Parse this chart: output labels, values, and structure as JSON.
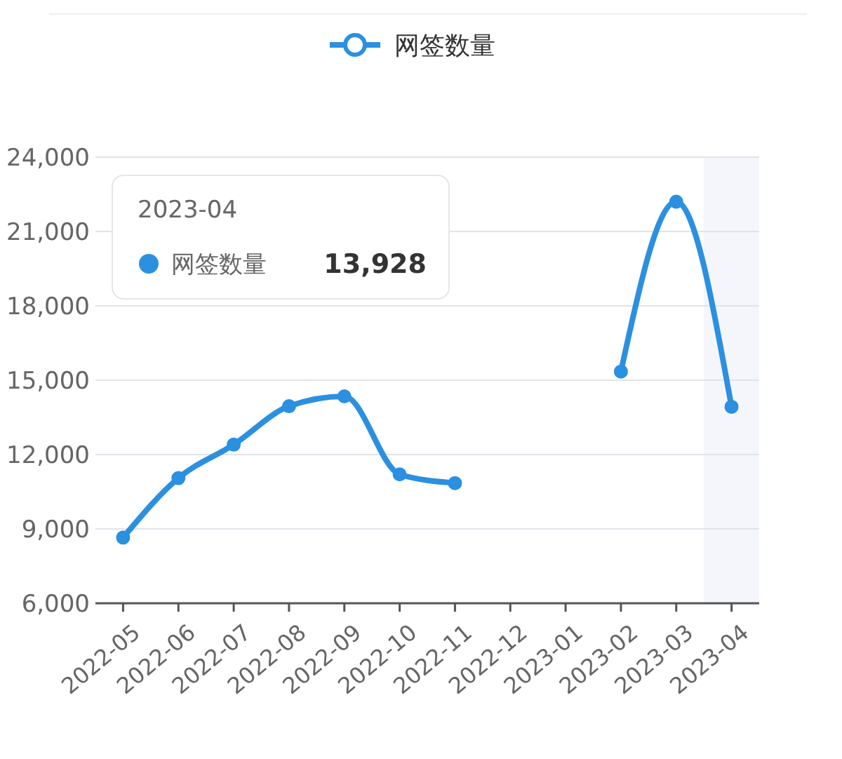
{
  "chart_data": {
    "type": "line",
    "categories": [
      "2022-05",
      "2022-06",
      "2022-07",
      "2022-08",
      "2022-09",
      "2022-10",
      "2022-11",
      "2022-12",
      "2023-01",
      "2023-02",
      "2023-03",
      "2023-04"
    ],
    "series": [
      {
        "name": "网签数量",
        "color": "#2b90e0",
        "values": [
          8650,
          11050,
          12400,
          13950,
          14350,
          11200,
          10850,
          null,
          null,
          15350,
          22200,
          13928
        ]
      }
    ],
    "ylim": [
      6000,
      24000
    ],
    "yticks": [
      {
        "value": 6000,
        "label": "6,000"
      },
      {
        "value": 9000,
        "label": "9,000"
      },
      {
        "value": 12000,
        "label": "12,000"
      },
      {
        "value": 15000,
        "label": "15,000"
      },
      {
        "value": 18000,
        "label": "18,000"
      },
      {
        "value": 21000,
        "label": "21,000"
      },
      {
        "value": 24000,
        "label": "24,000"
      }
    ],
    "grid": "y",
    "legend": "top",
    "marker": "circle",
    "line_style": "solid",
    "bands": [
      {
        "axis": "x",
        "from": "2023-04",
        "to": "2023-04",
        "color": "#f4f6fb"
      }
    ],
    "annotations": [
      "2023-04",
      "13,928"
    ]
  }
}
